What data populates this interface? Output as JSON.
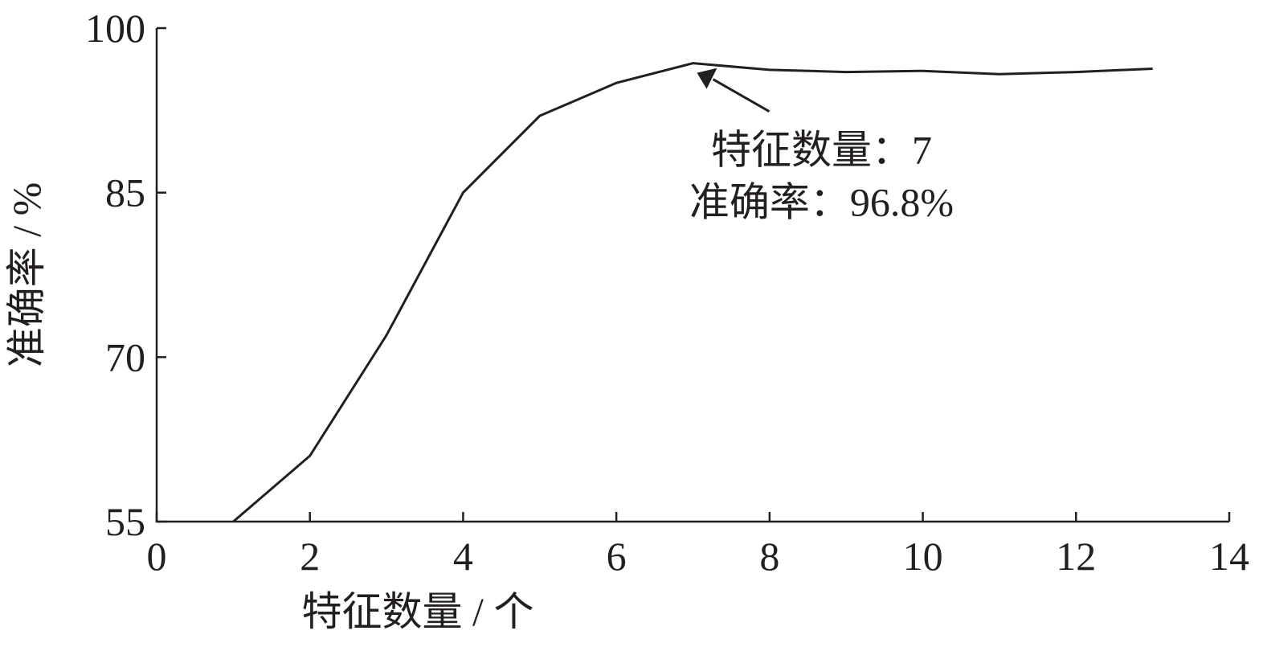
{
  "chart_data": {
    "type": "line",
    "x_label": "特征数量 / 个",
    "y_label": "准确率 / %",
    "x": [
      1,
      2,
      3,
      4,
      5,
      6,
      7,
      8,
      9,
      10,
      11,
      12,
      13
    ],
    "series": [
      {
        "color": "#231f20",
        "values": [
          55,
          61,
          72,
          85,
          92,
          95,
          96.8,
          96.2,
          96.0,
          96.1,
          95.8,
          96.0,
          96.3
        ]
      }
    ],
    "xlim": [
      0,
      14
    ],
    "xticks": [
      0,
      2,
      4,
      6,
      8,
      10,
      12,
      14
    ],
    "ylim": [
      55,
      100
    ],
    "yticks": [
      55,
      70,
      85,
      100
    ],
    "annotation": {
      "lines": [
        "特征数量：7",
        "准确率：96.8%"
      ],
      "x": 7,
      "y": 96.8
    }
  }
}
